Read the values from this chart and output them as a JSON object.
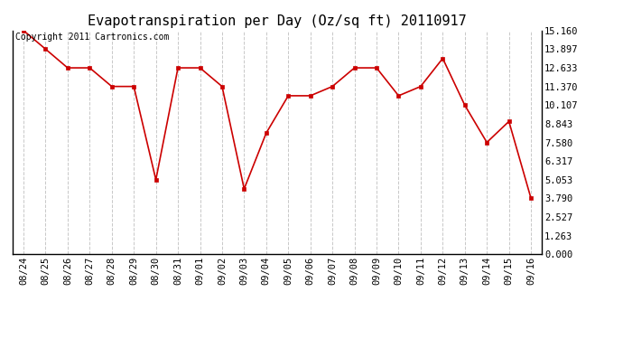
{
  "title": "Evapotranspiration per Day (Oz/sq ft) 20110917",
  "copyright_text": "Copyright 2011 Cartronics.com",
  "line_color": "#cc0000",
  "marker_color": "#cc0000",
  "background_color": "#ffffff",
  "grid_color": "#c8c8c8",
  "categories": [
    "08/24",
    "08/25",
    "08/26",
    "08/27",
    "08/28",
    "08/29",
    "08/30",
    "08/31",
    "09/01",
    "09/02",
    "09/03",
    "09/04",
    "09/05",
    "09/06",
    "09/07",
    "09/08",
    "09/09",
    "09/10",
    "09/11",
    "09/12",
    "09/13",
    "09/14",
    "09/15",
    "09/16"
  ],
  "values": [
    15.16,
    13.9,
    12.63,
    12.63,
    11.37,
    11.37,
    5.05,
    12.63,
    12.63,
    11.37,
    4.43,
    8.21,
    10.74,
    10.74,
    11.37,
    12.63,
    12.63,
    10.74,
    11.37,
    13.27,
    10.1,
    7.58,
    9.0,
    3.79
  ],
  "yticks": [
    0.0,
    1.263,
    2.527,
    3.79,
    5.053,
    6.317,
    7.58,
    8.843,
    10.107,
    11.37,
    12.633,
    13.897,
    15.16
  ],
  "ylim": [
    0.0,
    15.16
  ],
  "title_fontsize": 11,
  "tick_fontsize": 7.5,
  "copyright_fontsize": 7
}
